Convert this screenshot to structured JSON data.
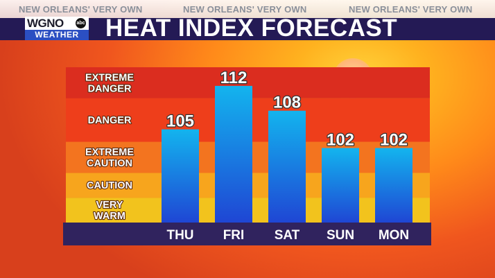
{
  "ticker": {
    "items": [
      "NEW ORLEANS' VERY OWN",
      "NEW ORLEANS' VERY OWN",
      "NEW ORLEANS' VERY OWN"
    ]
  },
  "logo": {
    "top": "WGNO",
    "network": "abc",
    "bottom": "WEATHER"
  },
  "title": "HEAT INDEX FORECAST",
  "colors": {
    "bar_top": "#13b4ee",
    "bar_bottom": "#1f46d4",
    "axis_strip": "#30235e"
  },
  "chart_data": {
    "type": "bar",
    "title": "HEAT INDEX FORECAST",
    "categories": [
      "THU",
      "FRI",
      "SAT",
      "SUN",
      "MON"
    ],
    "values": [
      105,
      112,
      108,
      102,
      102
    ],
    "data_labels": [
      "105",
      "112",
      "108",
      "102",
      "102"
    ],
    "ylim": [
      90,
      115
    ],
    "grid": false,
    "bands": [
      {
        "lines": [
          "VERY",
          "WARM"
        ],
        "from": 90,
        "to": 94,
        "color": "#f2c31d"
      },
      {
        "lines": [
          "CAUTION"
        ],
        "from": 94,
        "to": 98,
        "color": "#f7a51d"
      },
      {
        "lines": [
          "EXTREME",
          "CAUTION"
        ],
        "from": 98,
        "to": 103,
        "color": "#f3741f"
      },
      {
        "lines": [
          "DANGER"
        ],
        "from": 103,
        "to": 110,
        "color": "#ee3e1b"
      },
      {
        "lines": [
          "EXTREME",
          "DANGER"
        ],
        "from": 110,
        "to": 115,
        "color": "#db2d1f"
      }
    ]
  }
}
